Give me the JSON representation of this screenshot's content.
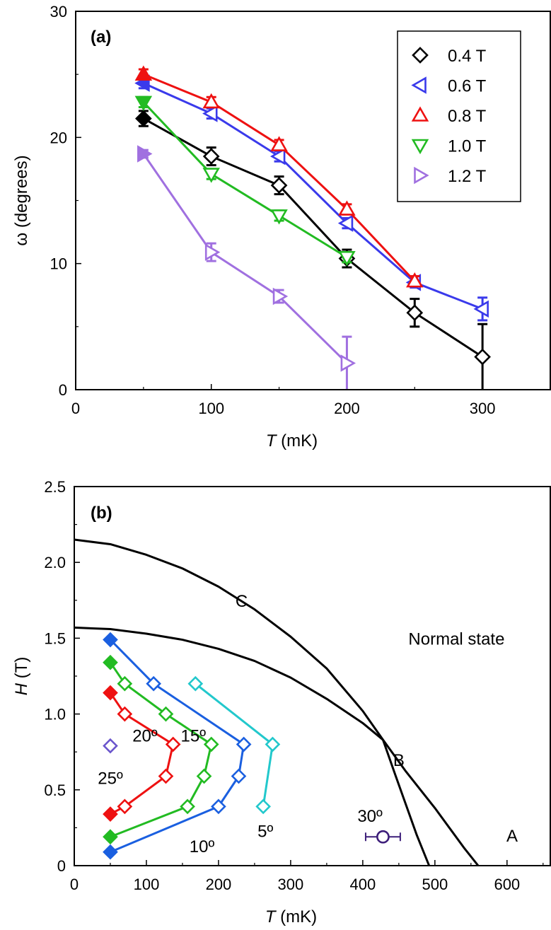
{
  "chart_data": [
    {
      "type": "line",
      "panel_label": "(a)",
      "xlabel_italic": "T",
      "xlabel_rest": " (mK)",
      "ylabel": "ω (degrees)",
      "xlim": [
        0,
        350
      ],
      "ylim": [
        0,
        30
      ],
      "xticks": [
        0,
        100,
        200,
        300
      ],
      "yticks": [
        0,
        10,
        20,
        30
      ],
      "legend_position": "top-right",
      "series": [
        {
          "name": "0.4 T",
          "marker": "diamond",
          "color": "#000000",
          "x": [
            50,
            100,
            150,
            200,
            250,
            300
          ],
          "y": [
            21.5,
            18.5,
            16.2,
            10.4,
            6.1,
            2.6
          ],
          "err": [
            0.6,
            0.7,
            0.7,
            0.7,
            1.1,
            2.6
          ],
          "filled_first": true
        },
        {
          "name": "0.6 T",
          "marker": "triangle-left",
          "color": "#3a3aeb",
          "x": [
            50,
            100,
            150,
            200,
            250,
            300
          ],
          "y": [
            24.3,
            21.9,
            18.5,
            13.2,
            8.5,
            6.4
          ],
          "err": [
            0.4,
            0.4,
            0.4,
            0.4,
            0.4,
            0.9
          ],
          "filled_first": true
        },
        {
          "name": "0.8 T",
          "marker": "triangle-up",
          "color": "#ee1111",
          "x": [
            50,
            100,
            150,
            200,
            250
          ],
          "y": [
            25.0,
            22.8,
            19.4,
            14.3,
            8.6
          ],
          "err": [
            0.4,
            0.4,
            0.4,
            0.4,
            0.4
          ],
          "filled_first": true
        },
        {
          "name": "1.0 T",
          "marker": "triangle-down",
          "color": "#22bb22",
          "x": [
            50,
            100,
            150,
            200
          ],
          "y": [
            22.8,
            17.1,
            13.8,
            10.5
          ],
          "err": [
            0.4,
            0.4,
            0.4,
            0.4
          ],
          "filled_first": true
        },
        {
          "name": "1.2 T",
          "marker": "triangle-right",
          "color": "#a070e0",
          "x": [
            50,
            100,
            150,
            200
          ],
          "y": [
            18.7,
            10.9,
            7.4,
            2.1
          ],
          "err": [
            0.3,
            0.7,
            0.5,
            2.1
          ],
          "filled_first": true
        }
      ]
    },
    {
      "type": "line",
      "panel_label": "(b)",
      "xlabel_italic": "T",
      "xlabel_rest": " (mK)",
      "ylabel_italic": "H",
      "ylabel_rest": " (T)",
      "xlim": [
        0,
        660
      ],
      "ylim": [
        0,
        2.5
      ],
      "xticks": [
        0,
        100,
        200,
        300,
        400,
        500,
        600
      ],
      "xtick_labels": [
        "0",
        "100",
        "200",
        "300",
        "400",
        "500",
        "600"
      ],
      "yticks": [
        0,
        0.5,
        1.0,
        1.5,
        2.0,
        2.5
      ],
      "ytick_labels": [
        "0",
        "0.5",
        "1.0",
        "1.5",
        "2.0",
        "2.5"
      ],
      "phase_boundaries": [
        {
          "x": [
            0,
            50,
            100,
            150,
            200,
            250,
            300,
            350,
            400,
            428,
            460,
            500,
            540,
            560
          ],
          "y": [
            2.15,
            2.12,
            2.05,
            1.96,
            1.84,
            1.69,
            1.51,
            1.3,
            1.02,
            0.83,
            0.62,
            0.38,
            0.12,
            0.0
          ]
        },
        {
          "x": [
            0,
            50,
            100,
            150,
            200,
            250,
            300,
            350,
            400,
            428
          ],
          "y": [
            1.57,
            1.56,
            1.53,
            1.49,
            1.43,
            1.35,
            1.24,
            1.1,
            0.94,
            0.83
          ]
        },
        {
          "x": [
            428,
            445,
            460,
            475,
            492
          ],
          "y": [
            0.83,
            0.6,
            0.4,
            0.2,
            0.0
          ]
        }
      ],
      "region_labels": [
        {
          "text": "C",
          "x": 232,
          "y": 1.75
        },
        {
          "text": "Normal state",
          "x": 530,
          "y": 1.5
        },
        {
          "text": "B",
          "x": 450,
          "y": 0.7
        },
        {
          "text": "A",
          "x": 607,
          "y": 0.2
        }
      ],
      "series": [
        {
          "name": "5º",
          "color": "#22c8cc",
          "x": [
            168,
            275,
            262
          ],
          "y": [
            1.2,
            0.8,
            0.39
          ],
          "filled": [
            false,
            false,
            false
          ],
          "label": {
            "text": "5º",
            "x": 265,
            "y": 0.23
          }
        },
        {
          "name": "10º",
          "color": "#1a5fe0",
          "x": [
            50,
            110,
            235,
            228,
            200,
            50
          ],
          "y": [
            1.49,
            1.2,
            0.8,
            0.59,
            0.39,
            0.09
          ],
          "filled": [
            true,
            false,
            false,
            false,
            false,
            true
          ],
          "label": {
            "text": "10º",
            "x": 177,
            "y": 0.13
          }
        },
        {
          "name": "15º",
          "color": "#22bb22",
          "x": [
            50,
            70,
            127,
            190,
            180,
            157,
            50
          ],
          "y": [
            1.34,
            1.2,
            1.0,
            0.8,
            0.59,
            0.39,
            0.19
          ],
          "filled": [
            true,
            false,
            false,
            false,
            false,
            false,
            true
          ],
          "label": {
            "text": "15º",
            "x": 165,
            "y": 0.86
          }
        },
        {
          "name": "20º",
          "color": "#ee1111",
          "x": [
            50,
            70,
            137,
            127,
            70,
            50
          ],
          "y": [
            1.14,
            1.0,
            0.8,
            0.59,
            0.39,
            0.34
          ],
          "filled": [
            true,
            false,
            false,
            false,
            false,
            true
          ],
          "label": {
            "text": "20º",
            "x": 98,
            "y": 0.86
          }
        },
        {
          "name": "25º",
          "color": "#6a55cc",
          "x": [
            50
          ],
          "y": [
            0.79
          ],
          "filled": [
            false
          ],
          "label": {
            "text": "25º",
            "x": 50,
            "y": 0.58
          }
        },
        {
          "name": "30º",
          "color": "#3d1e7a",
          "marker": "circle",
          "x": [
            428
          ],
          "y": [
            0.19
          ],
          "xerr": [
            24
          ],
          "filled": [
            false
          ],
          "label": {
            "text": "30º",
            "x": 410,
            "y": 0.33
          }
        }
      ]
    }
  ]
}
